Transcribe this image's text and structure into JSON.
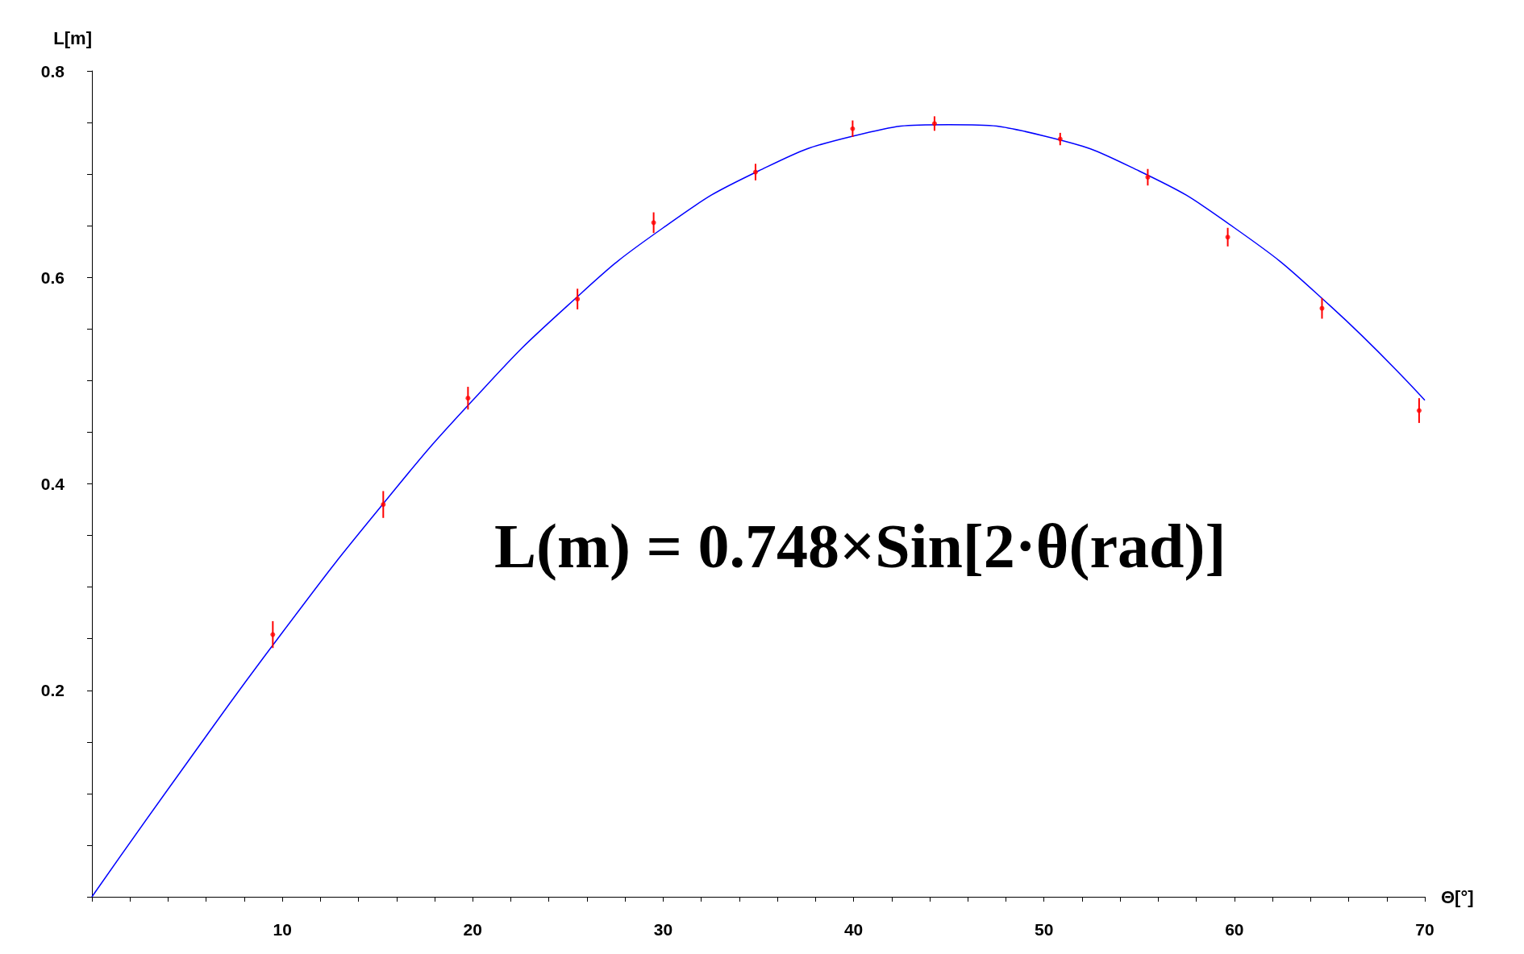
{
  "chart_data": {
    "type": "scatter",
    "xlabel": "Θ[°]",
    "ylabel": "L[m]",
    "annotations": [
      "L(m) = 0.748×Sin[2·θ(rad)]"
    ],
    "xlim": [
      0,
      70
    ],
    "ylim": [
      0,
      0.8
    ],
    "xticks": [
      {
        "value": 0,
        "label": null
      },
      {
        "value": 2,
        "label": null
      },
      {
        "value": 4,
        "label": null
      },
      {
        "value": 6,
        "label": null
      },
      {
        "value": 8,
        "label": null
      },
      10,
      {
        "value": 12,
        "label": null
      },
      {
        "value": 14,
        "label": null
      },
      {
        "value": 16,
        "label": null
      },
      {
        "value": 18,
        "label": null
      },
      20,
      {
        "value": 22,
        "label": null
      },
      {
        "value": 24,
        "label": null
      },
      {
        "value": 26,
        "label": null
      },
      {
        "value": 28,
        "label": null
      },
      30,
      {
        "value": 32,
        "label": null
      },
      {
        "value": 34,
        "label": null
      },
      {
        "value": 36,
        "label": null
      },
      {
        "value": 38,
        "label": null
      },
      40,
      {
        "value": 42,
        "label": null
      },
      {
        "value": 44,
        "label": null
      },
      {
        "value": 46,
        "label": null
      },
      {
        "value": 48,
        "label": null
      },
      50,
      {
        "value": 52,
        "label": null
      },
      {
        "value": 54,
        "label": null
      },
      {
        "value": 56,
        "label": null
      },
      {
        "value": 58,
        "label": null
      },
      60,
      {
        "value": 62,
        "label": null
      },
      {
        "value": 64,
        "label": null
      },
      {
        "value": 66,
        "label": null
      },
      {
        "value": 68,
        "label": null
      },
      70
    ],
    "yticks": [
      {
        "value": 0,
        "label": null
      },
      {
        "value": 0.05,
        "label": null
      },
      {
        "value": 0.1,
        "label": null
      },
      {
        "value": 0.15,
        "label": null
      },
      {
        "value": 0.2,
        "label": "0.2"
      },
      {
        "value": 0.25,
        "label": null
      },
      {
        "value": 0.3,
        "label": null
      },
      {
        "value": 0.35,
        "label": null
      },
      {
        "value": 0.4,
        "label": "0.4"
      },
      {
        "value": 0.45,
        "label": null
      },
      {
        "value": 0.5,
        "label": null
      },
      {
        "value": 0.55,
        "label": null
      },
      {
        "value": 0.6,
        "label": "0.6"
      },
      {
        "value": 0.65,
        "label": null
      },
      {
        "value": 0.7,
        "label": null
      },
      {
        "value": 0.75,
        "label": null
      },
      {
        "value": 0.8,
        "label": "0.8"
      }
    ],
    "grid": false,
    "marker": "circle",
    "series": [
      {
        "color": "#ff0000",
        "x": [
          9.5,
          15.3,
          19.75,
          25.5,
          29.5,
          34.85,
          39.95,
          44.25,
          50.85,
          55.45,
          59.65,
          64.6,
          69.7
        ],
        "values": [
          0.254,
          0.38,
          0.483,
          0.579,
          0.653,
          0.702,
          0.744,
          0.749,
          0.734,
          0.697,
          0.639,
          0.57,
          0.471
        ],
        "errors": [
          0.013,
          0.013,
          0.011,
          0.01,
          0.01,
          0.008,
          0.008,
          0.007,
          0.006,
          0.008,
          0.009,
          0.01,
          0.012
        ]
      },
      {
        "type": "line",
        "color": "#0000ff",
        "marker": "none",
        "x": [
          0,
          5,
          10,
          15,
          20,
          25,
          30,
          35,
          40,
          45,
          50,
          55,
          60,
          65,
          70
        ],
        "values": [
          0,
          0.13,
          0.256,
          0.374,
          0.481,
          0.573,
          0.648,
          0.703,
          0.737,
          0.748,
          0.737,
          0.703,
          0.648,
          0.573,
          0.481
        ]
      }
    ]
  }
}
